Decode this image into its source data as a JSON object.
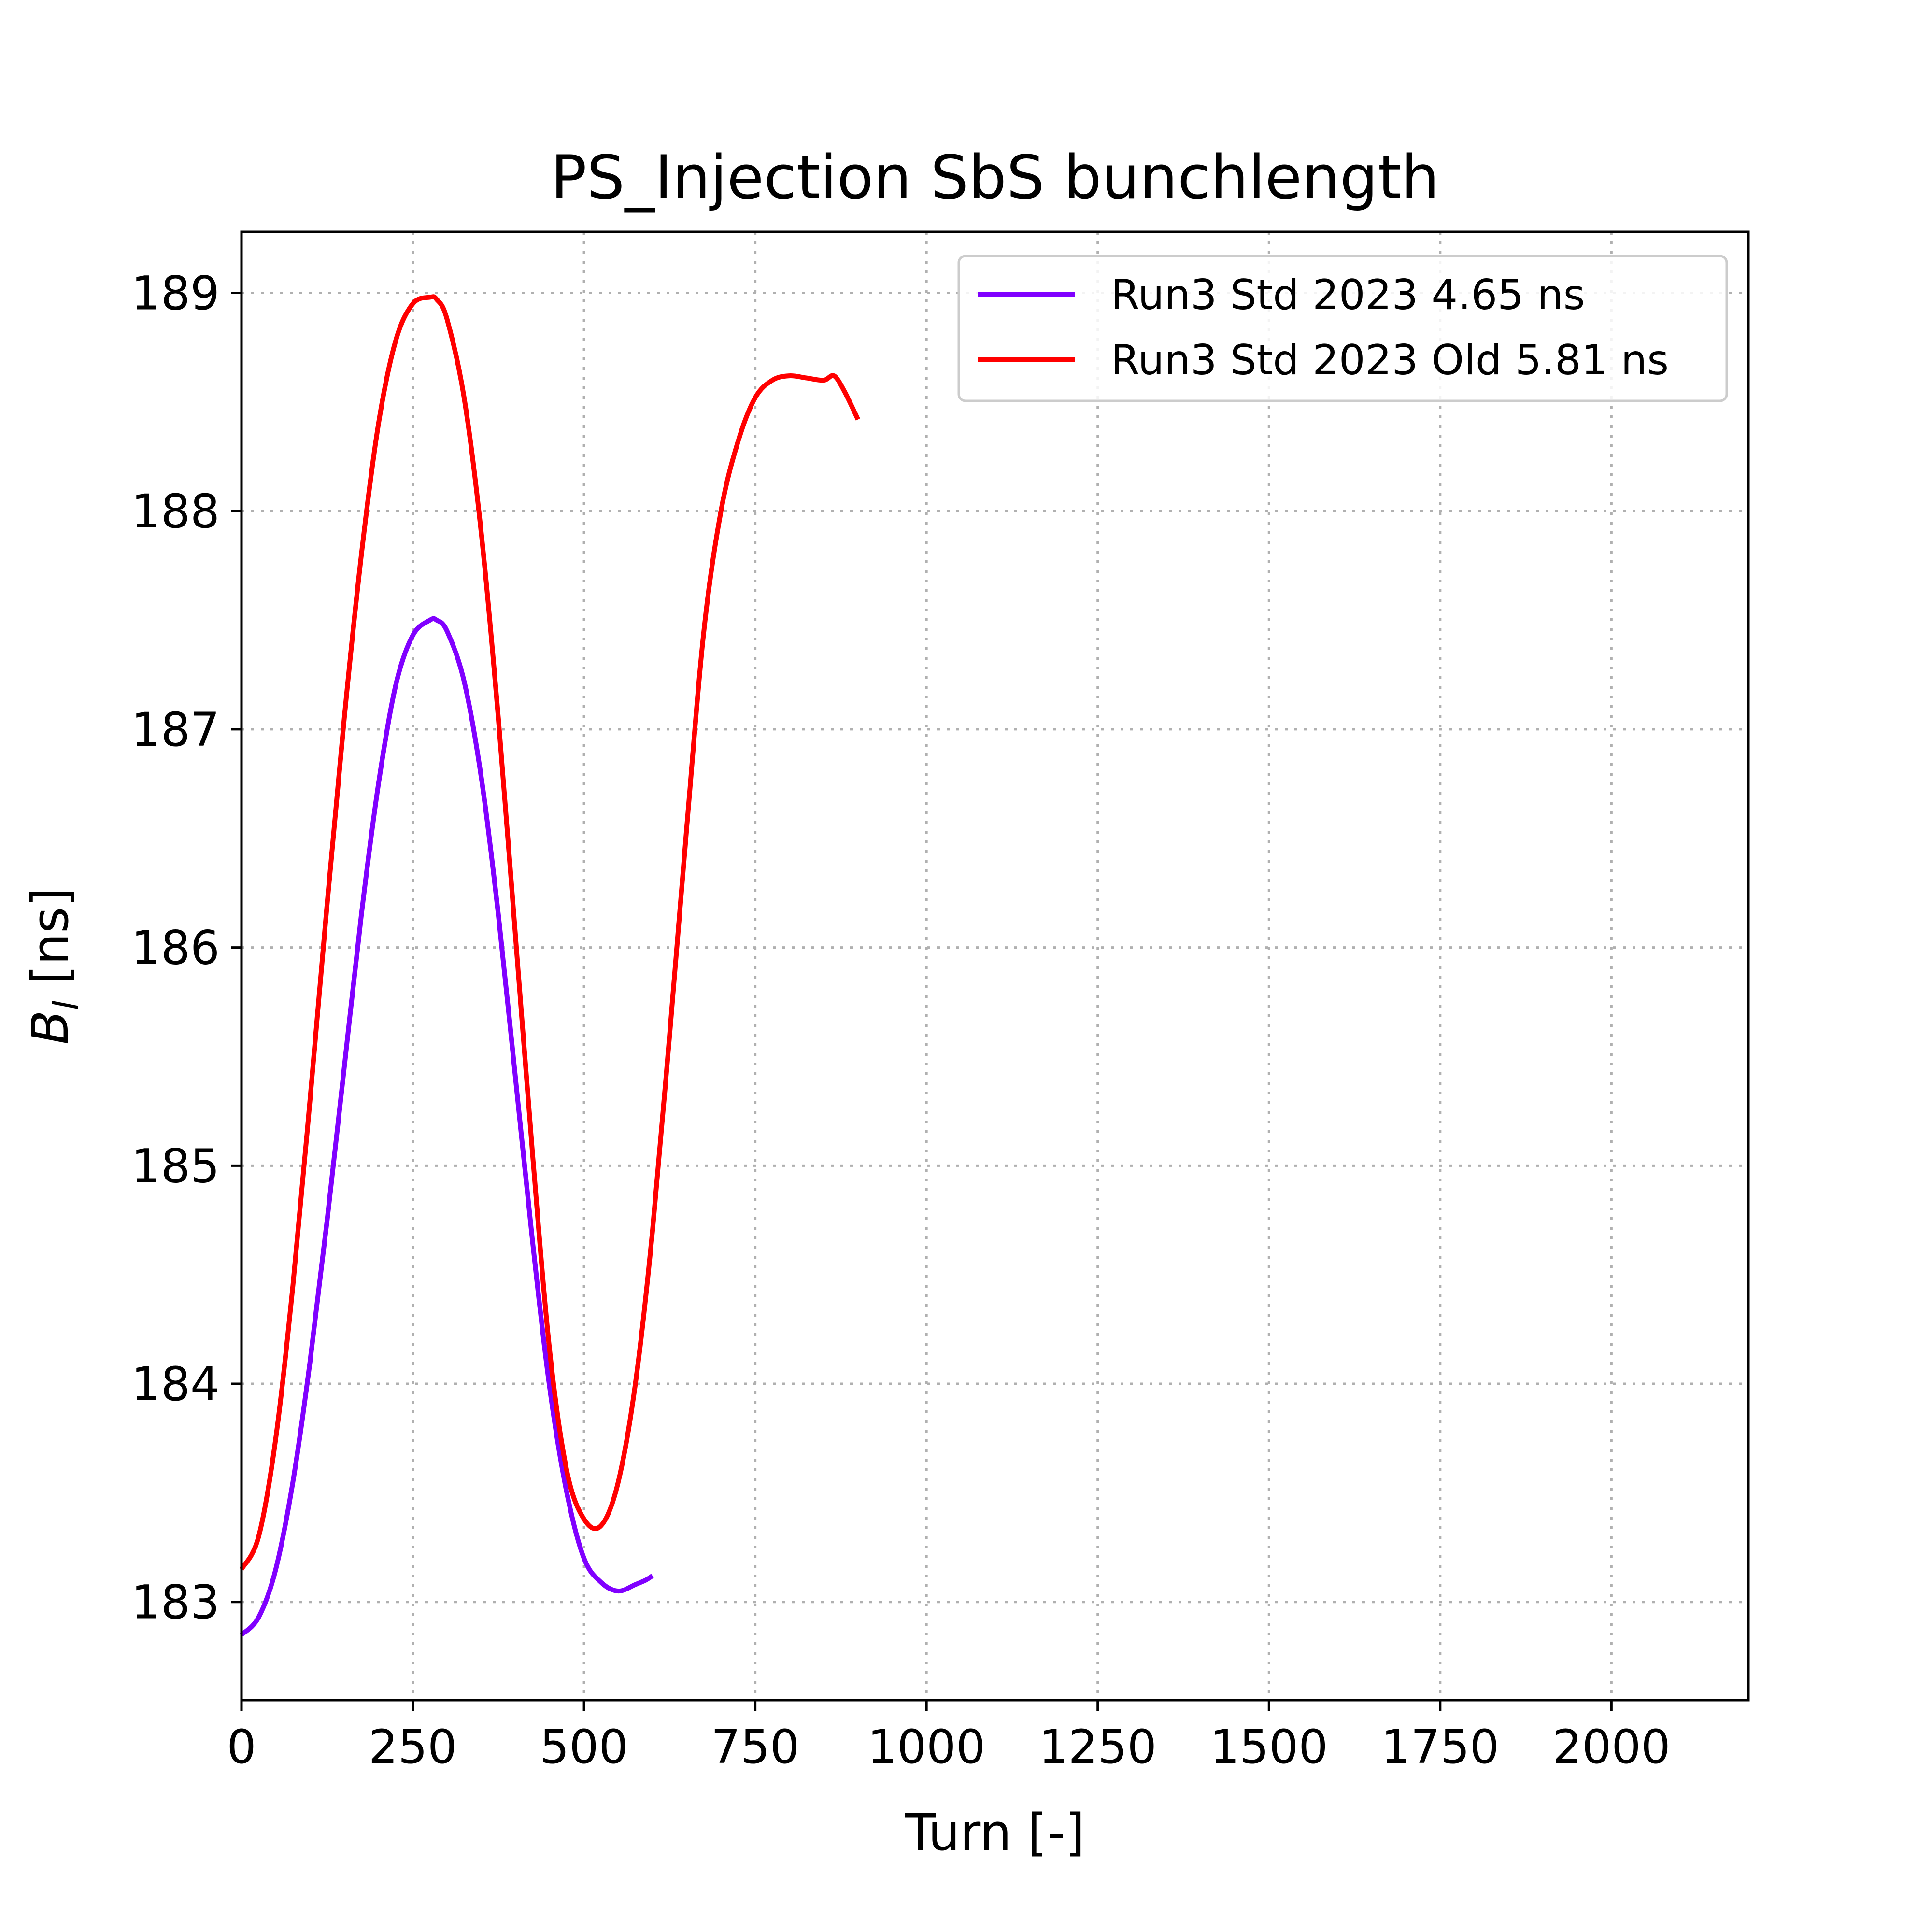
{
  "chart_data": {
    "type": "line",
    "title": "PS_Injection SbS bunchlength",
    "xlabel": "Turn [-]",
    "ylabel": {
      "base": "B",
      "sub": "l",
      "rest": " [ns]"
    },
    "xlim": [
      0,
      2200
    ],
    "ylim": [
      182.55,
      189.28
    ],
    "xticks": [
      0,
      250,
      500,
      750,
      1000,
      1250,
      1500,
      1750,
      2000
    ],
    "yticks": [
      183,
      184,
      185,
      186,
      187,
      188,
      189
    ],
    "grid": true,
    "legend_position": "top-right",
    "series": [
      {
        "name": "Run3 Std 2023 4.65 ns",
        "color": "#8000ff",
        "x": [
          0,
          25,
          50,
          75,
          100,
          125,
          150,
          175,
          200,
          225,
          250,
          275,
          285,
          300,
          325,
          350,
          375,
          400,
          425,
          450,
          475,
          500,
          525,
          550,
          575,
          590,
          600
        ],
        "y": [
          182.85,
          182.93,
          183.15,
          183.55,
          184.1,
          184.75,
          185.45,
          186.15,
          186.75,
          187.2,
          187.43,
          187.5,
          187.5,
          187.45,
          187.22,
          186.78,
          186.15,
          185.4,
          184.65,
          183.98,
          183.5,
          183.2,
          183.09,
          183.05,
          183.08,
          183.1,
          183.12
        ]
      },
      {
        "name": "Run3 Std 2023 Old 5.81 ns",
        "color": "#ff0000",
        "x": [
          0,
          25,
          50,
          75,
          100,
          125,
          150,
          175,
          200,
          225,
          250,
          275,
          285,
          300,
          325,
          350,
          375,
          400,
          425,
          450,
          475,
          500,
          525,
          550,
          575,
          600,
          625,
          650,
          675,
          700,
          725,
          750,
          775,
          800,
          825,
          850,
          865,
          880,
          900
        ],
        "y": [
          183.15,
          183.3,
          183.75,
          184.45,
          185.3,
          186.2,
          187.05,
          187.8,
          188.4,
          188.78,
          188.95,
          188.98,
          188.97,
          188.88,
          188.52,
          187.9,
          187.05,
          186.05,
          185.05,
          184.15,
          183.6,
          183.38,
          183.35,
          183.55,
          184.0,
          184.7,
          185.6,
          186.55,
          187.45,
          188.0,
          188.32,
          188.52,
          188.6,
          188.62,
          188.61,
          188.6,
          188.62,
          188.55,
          188.42
        ]
      }
    ]
  }
}
